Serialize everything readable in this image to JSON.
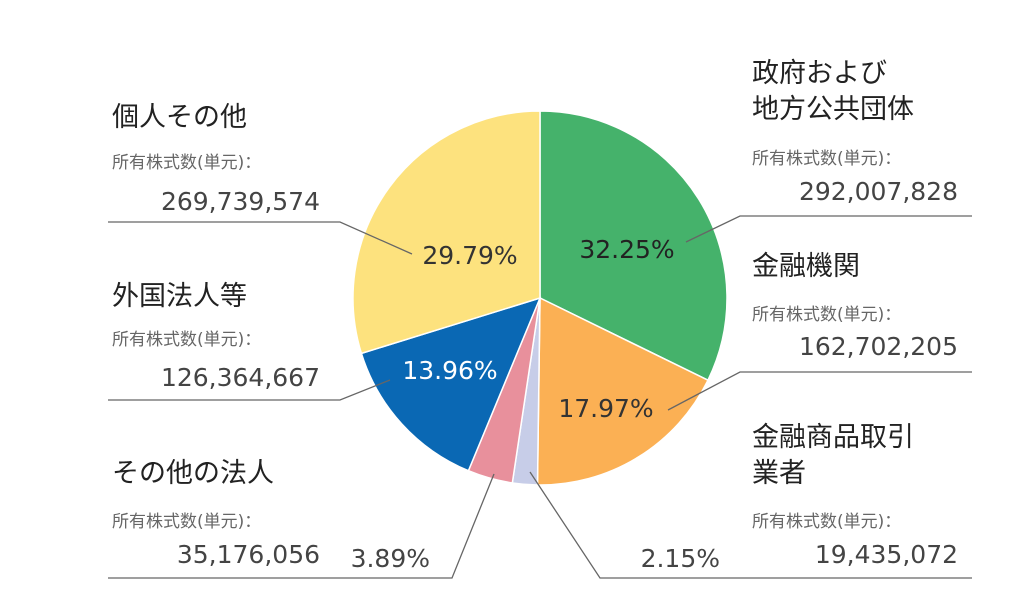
{
  "chart_data": {
    "type": "pie",
    "title": "",
    "series_label": "所有株式数(単元)：",
    "slices": [
      {
        "key": "gov",
        "name": [
          "政府および",
          "地方公共団体"
        ],
        "shares": "292,007,828",
        "value": 32.25,
        "percent_label": "32.25%",
        "color": "#45b26b",
        "text_color": "#222222"
      },
      {
        "key": "financial",
        "name": [
          "金融機関"
        ],
        "shares": "162,702,205",
        "value": 17.97,
        "percent_label": "17.97%",
        "color": "#fbb054",
        "text_color": "#333333"
      },
      {
        "key": "brokers",
        "name": [
          "金融商品取引",
          "業者"
        ],
        "shares": "19,435,072",
        "value": 2.15,
        "percent_label": "2.15%",
        "color": "#c7cde8",
        "text_color": "#444444"
      },
      {
        "key": "corp",
        "name": [
          "その他の法人"
        ],
        "shares": "35,176,056",
        "value": 3.89,
        "percent_label": "3.89%",
        "color": "#e8909c",
        "text_color": "#444444"
      },
      {
        "key": "foreign",
        "name": [
          "外国法人等"
        ],
        "shares": "126,364,667",
        "value": 13.96,
        "percent_label": "13.96%",
        "color": "#0a68b4",
        "text_color": "#ffffff"
      },
      {
        "key": "individual",
        "name": [
          "個人その他"
        ],
        "shares": "269,739,574",
        "value": 29.79,
        "percent_label": "29.79%",
        "color": "#fde27e",
        "text_color": "#333333"
      }
    ]
  }
}
